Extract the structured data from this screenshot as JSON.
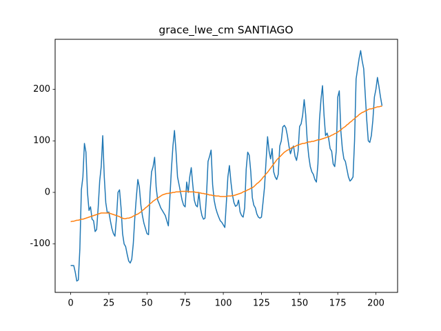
{
  "chart_data": {
    "type": "line",
    "title": "grace_lwe_cm SANTIAGO",
    "x": [
      0,
      1,
      2,
      3,
      4,
      5,
      6,
      7,
      8,
      9,
      10,
      11,
      12,
      13,
      14,
      15,
      16,
      17,
      18,
      19,
      20,
      21,
      22,
      23,
      24,
      25,
      26,
      27,
      28,
      29,
      30,
      31,
      32,
      33,
      34,
      35,
      36,
      37,
      38,
      39,
      40,
      41,
      42,
      43,
      44,
      45,
      46,
      47,
      48,
      49,
      50,
      51,
      52,
      53,
      54,
      55,
      56,
      57,
      58,
      59,
      60,
      61,
      62,
      63,
      64,
      65,
      66,
      67,
      68,
      69,
      70,
      71,
      72,
      73,
      74,
      75,
      76,
      77,
      78,
      79,
      80,
      81,
      82,
      83,
      84,
      85,
      86,
      87,
      88,
      89,
      90,
      91,
      92,
      93,
      94,
      95,
      96,
      97,
      98,
      99,
      100,
      101,
      102,
      103,
      104,
      105,
      106,
      107,
      108,
      109,
      110,
      111,
      112,
      113,
      114,
      115,
      116,
      117,
      118,
      119,
      120,
      121,
      122,
      123,
      124,
      125,
      126,
      127,
      128,
      129,
      130,
      131,
      132,
      133,
      134,
      135,
      136,
      137,
      138,
      139,
      140,
      141,
      142,
      143,
      144,
      145,
      146,
      147,
      148,
      149,
      150,
      151,
      152,
      153,
      154,
      155,
      156,
      157,
      158,
      159,
      160,
      161,
      162,
      163,
      164,
      165,
      166,
      167,
      168,
      169,
      170,
      171,
      172,
      173,
      174,
      175,
      176,
      177,
      178,
      179,
      180,
      181,
      182,
      183,
      184,
      185,
      186,
      187,
      188,
      189,
      190,
      191,
      192,
      193,
      194,
      195,
      196,
      197,
      198,
      199,
      200,
      201,
      202,
      203,
      204
    ],
    "series": [
      {
        "color": "#1f77b4",
        "values": [
          -142,
          -142,
          -142,
          -155,
          -172,
          -170,
          -110,
          5,
          30,
          95,
          78,
          0,
          -35,
          -28,
          -52,
          -55,
          -76,
          -72,
          -30,
          22,
          50,
          110,
          30,
          -20,
          -40,
          -38,
          -55,
          -70,
          -80,
          -85,
          -50,
          0,
          5,
          -30,
          -80,
          -100,
          -105,
          -120,
          -133,
          -137,
          -130,
          -100,
          -50,
          -10,
          25,
          10,
          -25,
          -45,
          -60,
          -70,
          -80,
          -82,
          0,
          40,
          50,
          68,
          10,
          -15,
          -22,
          -30,
          -35,
          -40,
          -45,
          -55,
          -65,
          -10,
          45,
          90,
          120,
          80,
          30,
          15,
          0,
          -15,
          -25,
          -28,
          20,
          0,
          30,
          48,
          15,
          -15,
          -25,
          -28,
          0,
          -30,
          -45,
          -52,
          -50,
          -5,
          60,
          70,
          82,
          15,
          -15,
          -30,
          -40,
          -48,
          -55,
          -58,
          -63,
          -68,
          -20,
          30,
          52,
          20,
          -5,
          -20,
          -27,
          -25,
          -15,
          -38,
          -45,
          -48,
          -30,
          45,
          78,
          72,
          40,
          -10,
          -25,
          -30,
          -42,
          -48,
          -50,
          -48,
          -20,
          10,
          60,
          108,
          80,
          65,
          85,
          40,
          30,
          25,
          35,
          90,
          100,
          127,
          130,
          125,
          110,
          90,
          75,
          85,
          90,
          70,
          62,
          80,
          128,
          133,
          150,
          180,
          150,
          100,
          70,
          50,
          40,
          35,
          25,
          20,
          55,
          140,
          180,
          207,
          150,
          110,
          115,
          105,
          85,
          80,
          55,
          50,
          80,
          185,
          197,
          120,
          85,
          65,
          60,
          45,
          30,
          22,
          25,
          30,
          100,
          220,
          240,
          260,
          275,
          255,
          240,
          190,
          140,
          100,
          97,
          110,
          140,
          185,
          200,
          223,
          205,
          185,
          168
        ]
      },
      {
        "color": "#ff7f0e",
        "values": [
          -57,
          -56,
          -56,
          -55,
          -54,
          -54,
          -53,
          -52,
          -52,
          -51,
          -50,
          -49,
          -48,
          -47,
          -46,
          -45,
          -44,
          -43,
          -42,
          -41,
          -40,
          -40,
          -40,
          -40,
          -40,
          -40,
          -41,
          -42,
          -43,
          -44,
          -45,
          -46,
          -47,
          -49,
          -50,
          -51,
          -51,
          -50,
          -50,
          -49,
          -48,
          -46,
          -45,
          -43,
          -42,
          -40,
          -38,
          -35,
          -33,
          -30,
          -28,
          -25,
          -22,
          -20,
          -17,
          -15,
          -13,
          -11,
          -9,
          -7,
          -5,
          -4,
          -3,
          -2,
          -2,
          -1,
          -1,
          0,
          0,
          1,
          1,
          1,
          2,
          2,
          2,
          2,
          2,
          2,
          1,
          1,
          1,
          1,
          0,
          0,
          -1,
          -1,
          -2,
          -2,
          -3,
          -3,
          -4,
          -5,
          -5,
          -6,
          -6,
          -7,
          -7,
          -7,
          -8,
          -8,
          -8,
          -8,
          -8,
          -7,
          -7,
          -7,
          -6,
          -6,
          -5,
          -4,
          -3,
          -2,
          -1,
          1,
          2,
          3,
          5,
          6,
          8,
          9,
          11,
          14,
          17,
          19,
          22,
          25,
          29,
          32,
          36,
          39,
          43,
          47,
          51,
          55,
          59,
          63,
          66,
          69,
          72,
          75,
          78,
          80,
          82,
          83,
          85,
          87,
          88,
          89,
          91,
          92,
          93,
          94,
          95,
          95,
          96,
          97,
          98,
          98,
          99,
          99,
          100,
          101,
          102,
          102,
          103,
          104,
          105,
          106,
          107,
          108,
          109,
          111,
          112,
          114,
          115,
          117,
          119,
          121,
          124,
          126,
          128,
          131,
          133,
          136,
          138,
          141,
          143,
          146,
          148,
          151,
          153,
          155,
          156,
          158,
          159,
          161,
          162,
          162,
          163,
          164,
          165,
          166,
          166,
          167,
          167
        ]
      }
    ],
    "xlim": [
      -10.2,
      214.2
    ],
    "ylim": [
      -194,
      297
    ],
    "xticks": [
      0,
      25,
      50,
      75,
      100,
      125,
      150,
      175,
      200
    ],
    "yticks": [
      -100,
      0,
      100,
      200
    ],
    "grid": false
  }
}
